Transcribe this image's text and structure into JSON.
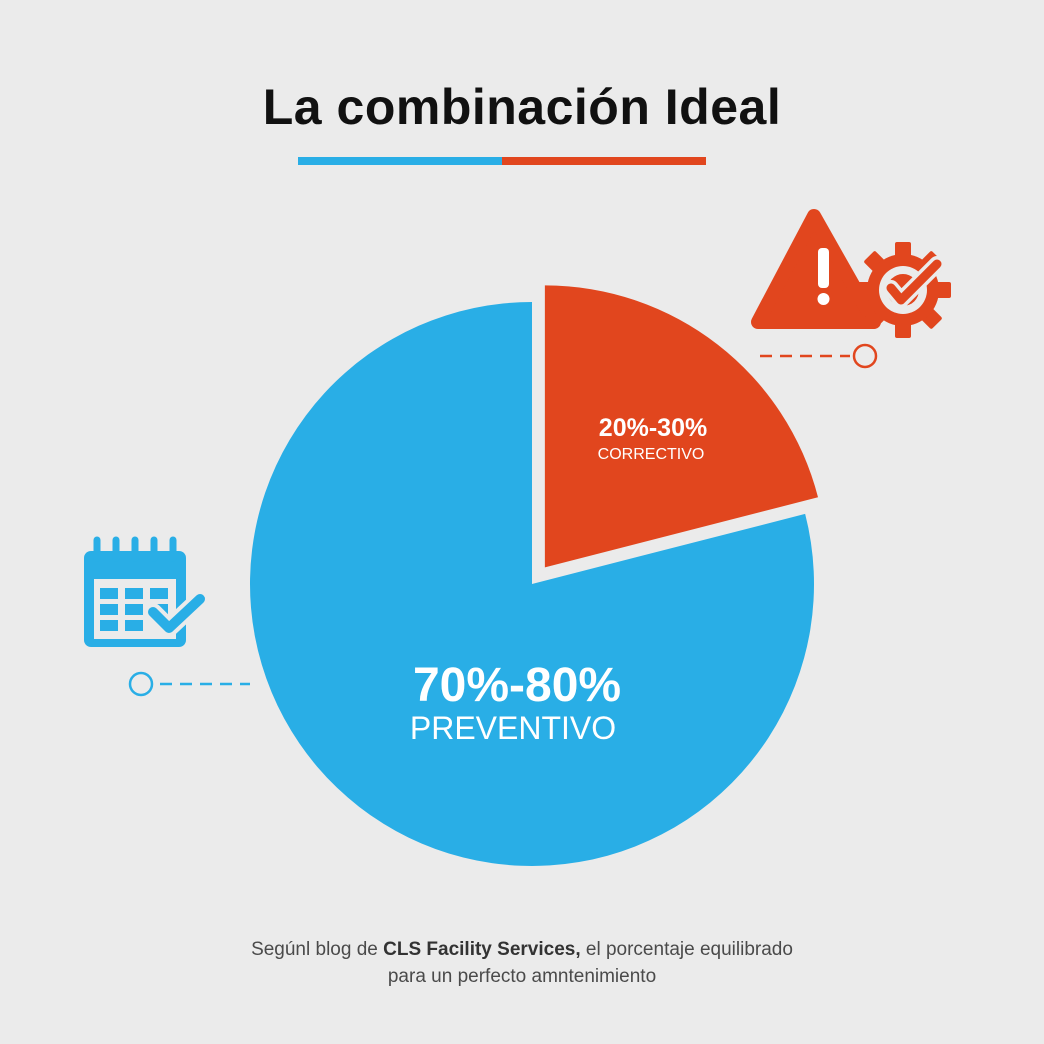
{
  "title": "La combinación Ideal",
  "colors": {
    "background": "#ebebeb",
    "preventivo": "#29aee6",
    "correctivo": "#e1461e",
    "title_text": "#111111",
    "caption_text": "#4a4a4a"
  },
  "chart_data": {
    "type": "pie",
    "title": "La combinación Ideal",
    "slices": [
      {
        "range_label": "70%-80%",
        "label": "PREVENTIVO",
        "value": 79,
        "color": "#29aee6",
        "exploded": false
      },
      {
        "range_label": "20%-30%",
        "label": "CORRECTIVO",
        "value": 21,
        "color": "#e1461e",
        "exploded": true
      }
    ],
    "legend": "none"
  },
  "icons": {
    "preventivo": "calendar-check-icon",
    "correctivo": "warning-gear-check-icon"
  },
  "caption": {
    "prefix": "Segúnl blog de ",
    "source": "CLS Facility Services,",
    "suffix": " el porcentaje equilibrado",
    "line2": "para un perfecto amntenimiento"
  }
}
